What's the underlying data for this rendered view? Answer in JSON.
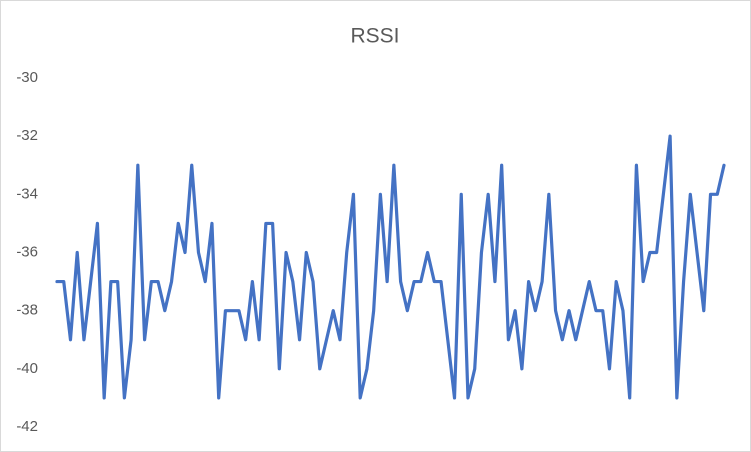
{
  "chart_data": {
    "type": "line",
    "title": "RSSI",
    "series": [
      {
        "name": "RSSI",
        "color": "#4472c4",
        "values": [
          -37,
          -37,
          -39,
          -36,
          -39,
          -37,
          -35,
          -41,
          -37,
          -37,
          -41,
          -39,
          -33,
          -39,
          -37,
          -37,
          -38,
          -37,
          -35,
          -36,
          -33,
          -36,
          -37,
          -35,
          -41,
          -38,
          -38,
          -38,
          -39,
          -37,
          -39,
          -35,
          -35,
          -40,
          -36,
          -37,
          -39,
          -36,
          -37,
          -40,
          -39,
          -38,
          -39,
          -36,
          -34,
          -41,
          -40,
          -38,
          -34,
          -37,
          -33,
          -37,
          -38,
          -37,
          -37,
          -36,
          -37,
          -37,
          -39,
          -41,
          -34,
          -41,
          -40,
          -36,
          -34,
          -37,
          -33,
          -39,
          -38,
          -40,
          -37,
          -38,
          -37,
          -34,
          -38,
          -39,
          -38,
          -39,
          -38,
          -37,
          -38,
          -38,
          -40,
          -37,
          -38,
          -41,
          -33,
          -37,
          -36,
          -36,
          -34,
          -32,
          -41,
          -37,
          -34,
          -36,
          -38,
          -34,
          -34,
          -33
        ]
      }
    ],
    "ylim": [
      -42,
      -30
    ],
    "yticks": [
      -42,
      -40,
      -38,
      -36,
      -34,
      -32,
      -30
    ],
    "grid": false
  }
}
